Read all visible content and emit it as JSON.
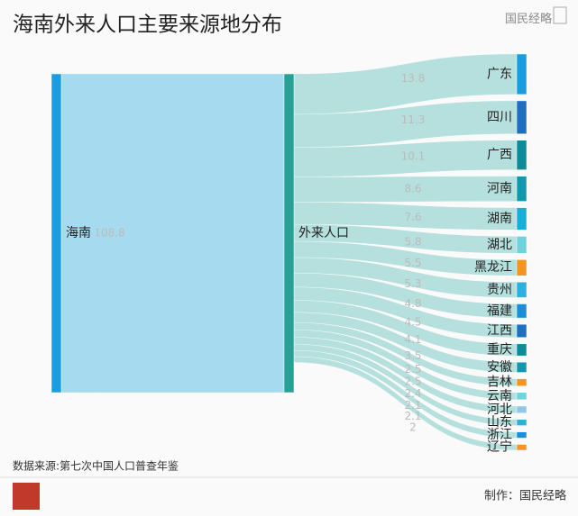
{
  "chart_data": {
    "type": "sankey",
    "title": "海南外来人口主要来源地分布",
    "logo": "国民经略",
    "source": "数据来源:第七次中国人口普查年鉴",
    "credit": "制作：国民经略",
    "link_color": "#a9dcd8",
    "first_link_color": "#a6dbef",
    "nodes": [
      {
        "name": "海南",
        "color": "#1a9de0"
      },
      {
        "name": "外来人口",
        "color": "#27a096"
      },
      {
        "name": "广东",
        "color": "#1a9de0"
      },
      {
        "name": "四川",
        "color": "#1f6fc0"
      },
      {
        "name": "广西",
        "color": "#0e8a9a"
      },
      {
        "name": "河南",
        "color": "#1198b0"
      },
      {
        "name": "湖南",
        "color": "#16b0d6"
      },
      {
        "name": "湖北",
        "color": "#6fd3dd"
      },
      {
        "name": "黑龙江",
        "color": "#f7941d"
      },
      {
        "name": "贵州",
        "color": "#2bb0e0"
      },
      {
        "name": "福建",
        "color": "#1a8fd8"
      },
      {
        "name": "江西",
        "color": "#1f6fc0"
      },
      {
        "name": "重庆",
        "color": "#0e8a9a"
      },
      {
        "name": "安徽",
        "color": "#1198b0"
      },
      {
        "name": "吉林",
        "color": "#f7941d"
      },
      {
        "name": "云南",
        "color": "#6fd3dd"
      },
      {
        "name": "河北",
        "color": "#8fc8e8"
      },
      {
        "name": "山东",
        "color": "#2bb0e0"
      },
      {
        "name": "浙江",
        "color": "#1a8fd8"
      },
      {
        "name": "辽宁",
        "color": "#f7941d"
      }
    ],
    "links": [
      {
        "source": "海南",
        "target": "外来人口",
        "value": 108.8
      },
      {
        "source": "外来人口",
        "target": "广东",
        "value": 13.8
      },
      {
        "source": "外来人口",
        "target": "四川",
        "value": 11.3
      },
      {
        "source": "外来人口",
        "target": "广西",
        "value": 10.1
      },
      {
        "source": "外来人口",
        "target": "河南",
        "value": 8.6
      },
      {
        "source": "外来人口",
        "target": "湖南",
        "value": 7.6
      },
      {
        "source": "外来人口",
        "target": "湖北",
        "value": 5.8
      },
      {
        "source": "外来人口",
        "target": "黑龙江",
        "value": 5.5
      },
      {
        "source": "外来人口",
        "target": "贵州",
        "value": 5.3
      },
      {
        "source": "外来人口",
        "target": "福建",
        "value": 4.8
      },
      {
        "source": "外来人口",
        "target": "江西",
        "value": 4.5
      },
      {
        "source": "外来人口",
        "target": "重庆",
        "value": 4.1
      },
      {
        "source": "外来人口",
        "target": "安徽",
        "value": 3.5
      },
      {
        "source": "外来人口",
        "target": "吉林",
        "value": 2.5
      },
      {
        "source": "外来人口",
        "target": "云南",
        "value": 2.5
      },
      {
        "source": "外来人口",
        "target": "河北",
        "value": 2.4
      },
      {
        "source": "外来人口",
        "target": "山东",
        "value": 2.1
      },
      {
        "source": "外来人口",
        "target": "浙江",
        "value": 2.1
      },
      {
        "source": "外来人口",
        "target": "辽宁",
        "value": 2
      }
    ]
  }
}
